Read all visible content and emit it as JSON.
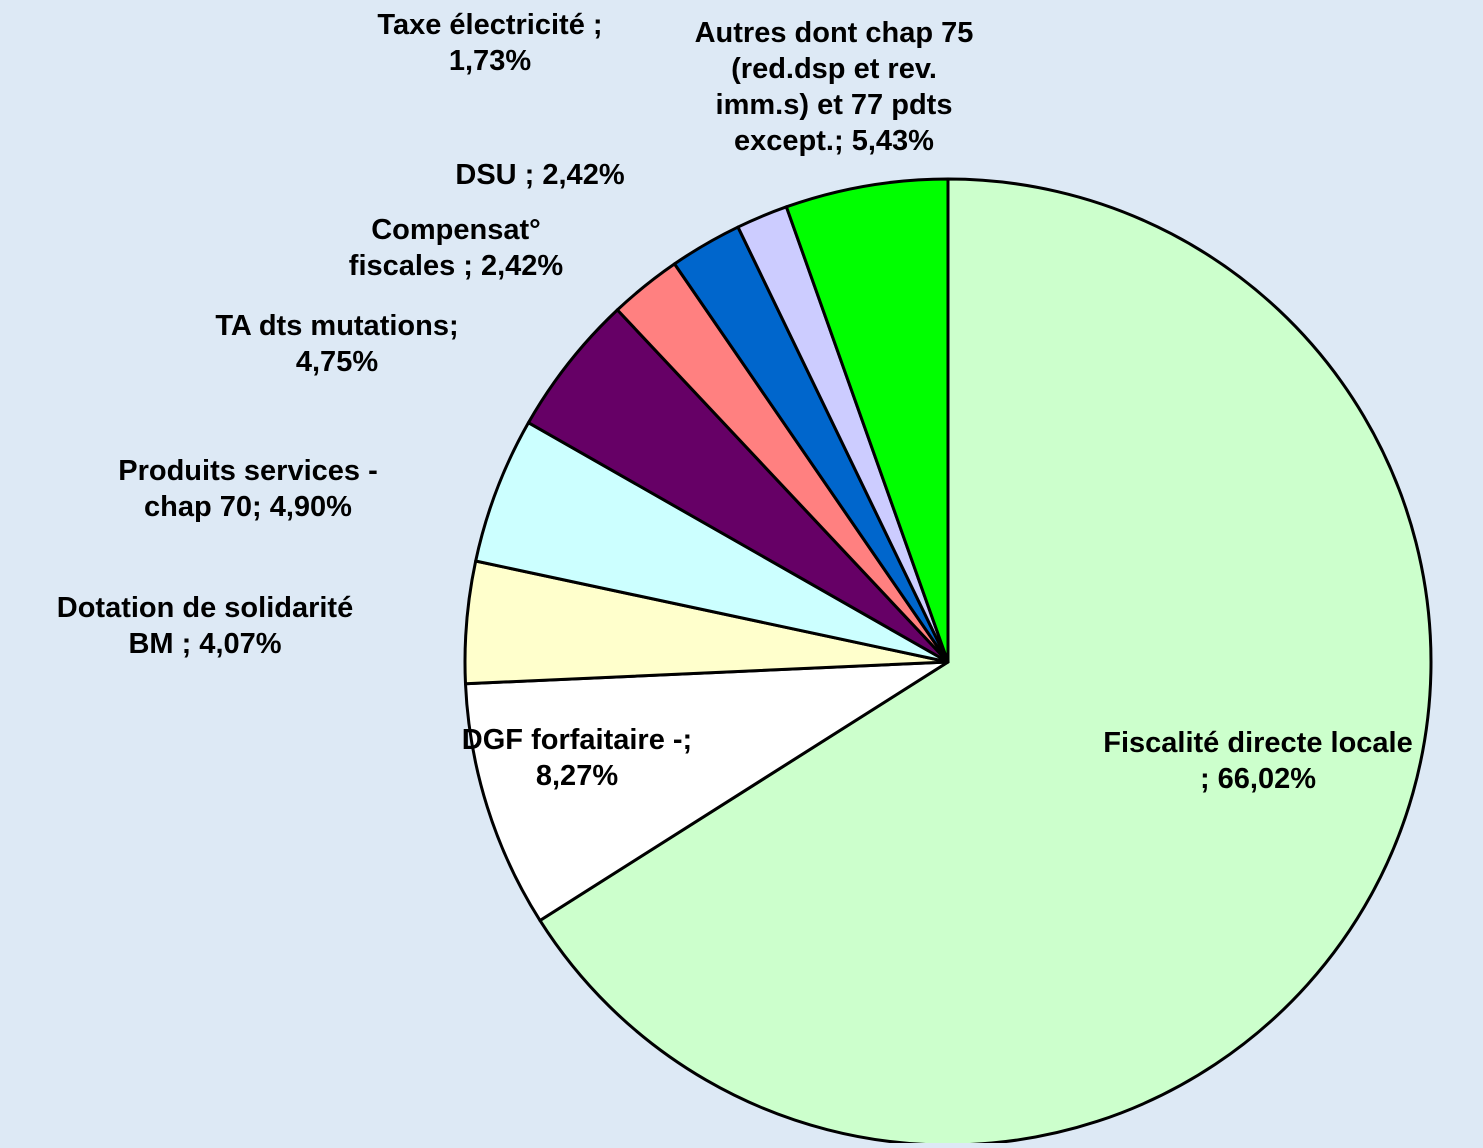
{
  "colors": {
    "background": "#dde9f5",
    "outline": "#000000"
  },
  "chart_data": {
    "type": "pie",
    "start_angle_deg": 0,
    "direction": "clockwise",
    "title": "",
    "slices": [
      {
        "name": "Fiscalité directe locale",
        "value": 66.02,
        "label_lines": [
          "Fiscalité directe locale",
          "; 66,02%"
        ],
        "color": "#ccffcc"
      },
      {
        "name": "DGF forfaitaire -",
        "value": 8.27,
        "label_lines": [
          "DGF forfaitaire -;",
          "8,27%"
        ],
        "color": "#ffffff"
      },
      {
        "name": "Dotation de solidarité BM",
        "value": 4.07,
        "label_lines": [
          "Dotation de solidarité",
          "BM ; 4,07%"
        ],
        "color": "#ffffcc"
      },
      {
        "name": "Produits services - chap 70",
        "value": 4.9,
        "label_lines": [
          "Produits  services -",
          "chap 70; 4,90%"
        ],
        "color": "#ccffff"
      },
      {
        "name": "TA dts mutations",
        "value": 4.75,
        "label_lines": [
          "TA dts mutations;",
          "4,75%"
        ],
        "color": "#660066"
      },
      {
        "name": "Compensat° fiscales",
        "value": 2.42,
        "label_lines": [
          "Compensat°",
          "fiscales ; 2,42%"
        ],
        "color": "#ff8080"
      },
      {
        "name": "DSU",
        "value": 2.42,
        "label_lines": [
          "DSU ; 2,42%"
        ],
        "color": "#0066cc"
      },
      {
        "name": "Taxe électricité",
        "value": 1.73,
        "label_lines": [
          "Taxe électricité ;",
          "1,73%"
        ],
        "color": "#ccccff"
      },
      {
        "name": "Autres dont chap 75 (red.dsp et rev. imm.s) et 77 pdts except.",
        "value": 5.43,
        "label_lines": [
          "Autres dont chap 75",
          "(red.dsp et rev.",
          "imm.s)  et 77 pdts",
          "except.; 5,43%"
        ],
        "color": "#00ff00"
      }
    ]
  }
}
